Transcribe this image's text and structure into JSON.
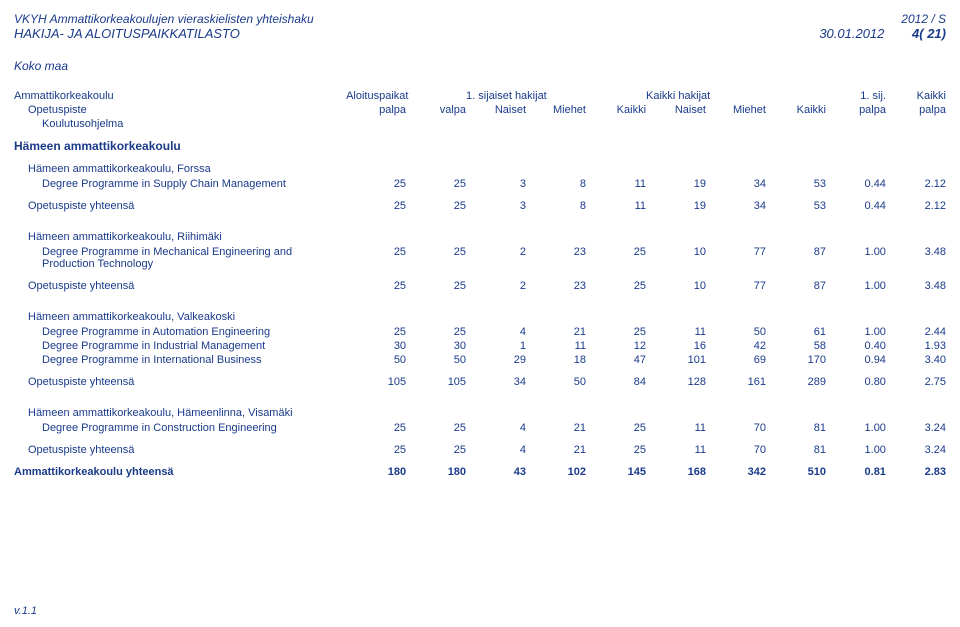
{
  "header": {
    "title1": "VKYH Ammattikorkeakoulujen vieraskielisten yhteishaku",
    "title2": "HAKIJA- JA ALOITUSPAIKKATILASTO",
    "period": "2012 / S",
    "date": "30.01.2012",
    "page": "4( 21)"
  },
  "koko_maa": "Koko maa",
  "col_labels": {
    "c1": "Ammattikorkeakoulu",
    "c2": "Opetuspiste",
    "c3": "Koulutusohjelma",
    "aloitus": "Aloituspaikat",
    "palpa": "palpa",
    "valpa": "valpa",
    "sij1": "1. sijaiset hakijat",
    "naiset": "Naiset",
    "miehet": "Miehet",
    "kaikki": "Kaikki",
    "kaikkihak": "Kaikki hakijat",
    "sij1b": "1. sij.",
    "kaikki2": "Kaikki"
  },
  "school": "Hämeen ammattikorkeakoulu",
  "sites": [
    {
      "name": "Hämeen ammattikorkeakoulu, Forssa",
      "programs": [
        {
          "label": "Degree Programme in Supply Chain Management",
          "v": [
            "25",
            "25",
            "3",
            "8",
            "11",
            "19",
            "34",
            "53",
            "0.44",
            "2.12"
          ]
        }
      ],
      "total": {
        "label": "Opetuspiste yhteensä",
        "v": [
          "25",
          "25",
          "3",
          "8",
          "11",
          "19",
          "34",
          "53",
          "0.44",
          "2.12"
        ]
      }
    },
    {
      "name": "Hämeen ammattikorkeakoulu, Riihimäki",
      "programs": [
        {
          "label": "Degree Programme in Mechanical Engineering and Production Technology",
          "v": [
            "25",
            "25",
            "2",
            "23",
            "25",
            "10",
            "77",
            "87",
            "1.00",
            "3.48"
          ]
        }
      ],
      "total": {
        "label": "Opetuspiste yhteensä",
        "v": [
          "25",
          "25",
          "2",
          "23",
          "25",
          "10",
          "77",
          "87",
          "1.00",
          "3.48"
        ]
      }
    },
    {
      "name": "Hämeen ammattikorkeakoulu, Valkeakoski",
      "programs": [
        {
          "label": "Degree Programme in Automation Engineering",
          "v": [
            "25",
            "25",
            "4",
            "21",
            "25",
            "11",
            "50",
            "61",
            "1.00",
            "2.44"
          ]
        },
        {
          "label": "Degree Programme in Industrial Management",
          "v": [
            "30",
            "30",
            "1",
            "11",
            "12",
            "16",
            "42",
            "58",
            "0.40",
            "1.93"
          ]
        },
        {
          "label": "Degree Programme in International Business",
          "v": [
            "50",
            "50",
            "29",
            "18",
            "47",
            "101",
            "69",
            "170",
            "0.94",
            "3.40"
          ]
        }
      ],
      "total": {
        "label": "Opetuspiste yhteensä",
        "v": [
          "105",
          "105",
          "34",
          "50",
          "84",
          "128",
          "161",
          "289",
          "0.80",
          "2.75"
        ]
      }
    },
    {
      "name": "Hämeen ammattikorkeakoulu, Hämeenlinna, Visamäki",
      "programs": [
        {
          "label": "Degree Programme in Construction Engineering",
          "v": [
            "25",
            "25",
            "4",
            "21",
            "25",
            "11",
            "70",
            "81",
            "1.00",
            "3.24"
          ]
        }
      ],
      "total": {
        "label": "Opetuspiste yhteensä",
        "v": [
          "25",
          "25",
          "4",
          "21",
          "25",
          "11",
          "70",
          "81",
          "1.00",
          "3.24"
        ]
      }
    }
  ],
  "grand_total": {
    "label": "Ammattikorkeakoulu yhteensä",
    "v": [
      "180",
      "180",
      "43",
      "102",
      "145",
      "168",
      "342",
      "510",
      "0.81",
      "2.83"
    ]
  },
  "footer": "v.1.1"
}
